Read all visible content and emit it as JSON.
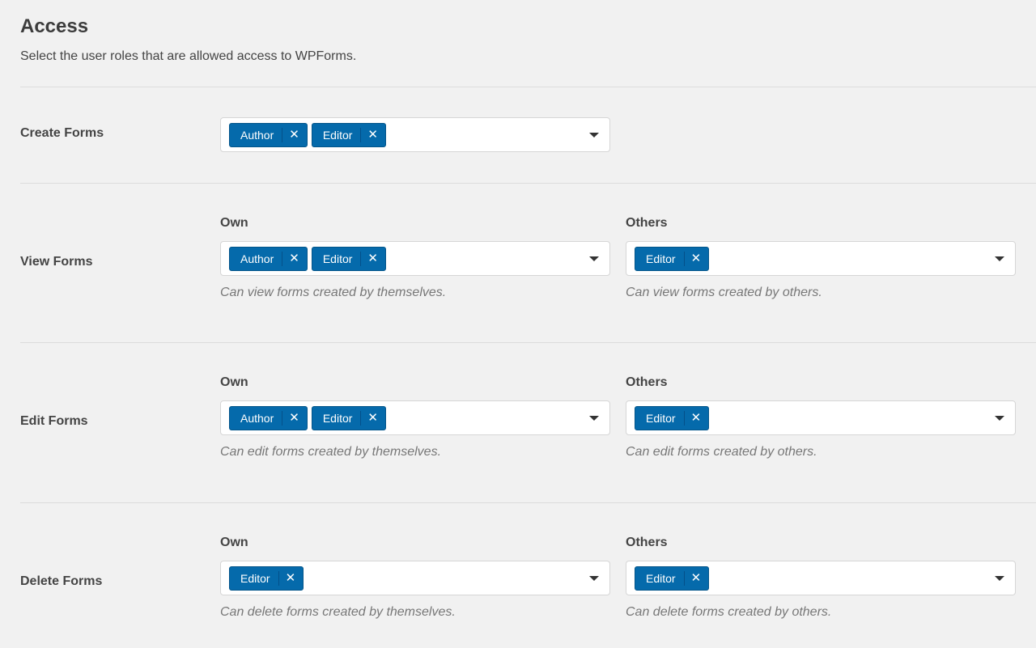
{
  "header": {
    "title": "Access",
    "description": "Select the user roles that are allowed access to WPForms."
  },
  "rows": [
    {
      "label": "Create Forms",
      "own": {
        "tags": [
          "Author",
          "Editor"
        ]
      }
    },
    {
      "label": "View Forms",
      "own": {
        "label": "Own",
        "tags": [
          "Author",
          "Editor"
        ],
        "help": "Can view forms created by themselves."
      },
      "others": {
        "label": "Others",
        "tags": [
          "Editor"
        ],
        "help": "Can view forms created by others."
      }
    },
    {
      "label": "Edit Forms",
      "own": {
        "label": "Own",
        "tags": [
          "Author",
          "Editor"
        ],
        "help": "Can edit forms created by themselves."
      },
      "others": {
        "label": "Others",
        "tags": [
          "Editor"
        ],
        "help": "Can edit forms created by others."
      }
    },
    {
      "label": "Delete Forms",
      "own": {
        "label": "Own",
        "tags": [
          "Editor"
        ],
        "help": "Can delete forms created by themselves."
      },
      "others": {
        "label": "Others",
        "tags": [
          "Editor"
        ],
        "help": "Can delete forms created by others."
      }
    }
  ],
  "remove_glyph": "✕",
  "colors": {
    "tag": "#056aab",
    "background": "#f1f1f1"
  }
}
